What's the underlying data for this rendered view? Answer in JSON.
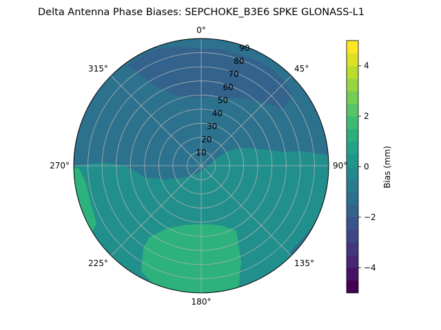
{
  "chart_data": {
    "type": "polar contour",
    "title": "Delta Antenna Phase Biases: SEPCHOKE_B3E6   SPKE GLONASS-L1",
    "angular_axis": {
      "direction": "clockwise",
      "zero_location": "top",
      "tick_labels": [
        "0°",
        "45°",
        "90°",
        "135°",
        "180°",
        "225°",
        "270°",
        "315°"
      ],
      "tick_values": [
        0,
        45,
        90,
        135,
        180,
        225,
        270,
        315
      ]
    },
    "radial_axis": {
      "tick_labels": [
        "10",
        "20",
        "30",
        "40",
        "50",
        "60",
        "70",
        "80",
        "90"
      ],
      "tick_values": [
        10,
        20,
        30,
        40,
        50,
        60,
        70,
        80,
        90
      ],
      "range": [
        0,
        90
      ]
    },
    "grid": true,
    "colorbar": {
      "label": "Bias (mm)",
      "tick_labels": [
        "−4",
        "−2",
        "0",
        "2",
        "4"
      ],
      "tick_values": [
        -4,
        -2,
        0,
        2,
        4
      ],
      "range": [
        -5,
        5
      ],
      "levels": [
        -5,
        -4.5,
        -4,
        -3.5,
        -3,
        -2.5,
        -2,
        -1.5,
        -1,
        -0.5,
        0,
        0.5,
        1,
        1.5,
        2,
        2.5,
        3,
        3.5,
        4,
        4.5,
        5
      ],
      "colormap": "viridis"
    },
    "regions": [
      {
        "level_range": [
          -1.5,
          -1.0
        ],
        "description": "northern band"
      },
      {
        "level_range": [
          -1.0,
          -0.5
        ],
        "description": "north half"
      },
      {
        "level_range": [
          0.5,
          1.0
        ],
        "description": "south half background"
      },
      {
        "level_range": [
          1.0,
          1.5
        ],
        "description": "southern lobe and west edge"
      },
      {
        "level_range": [
          -1.0,
          -0.5
        ],
        "description": "southeast edge"
      }
    ]
  }
}
